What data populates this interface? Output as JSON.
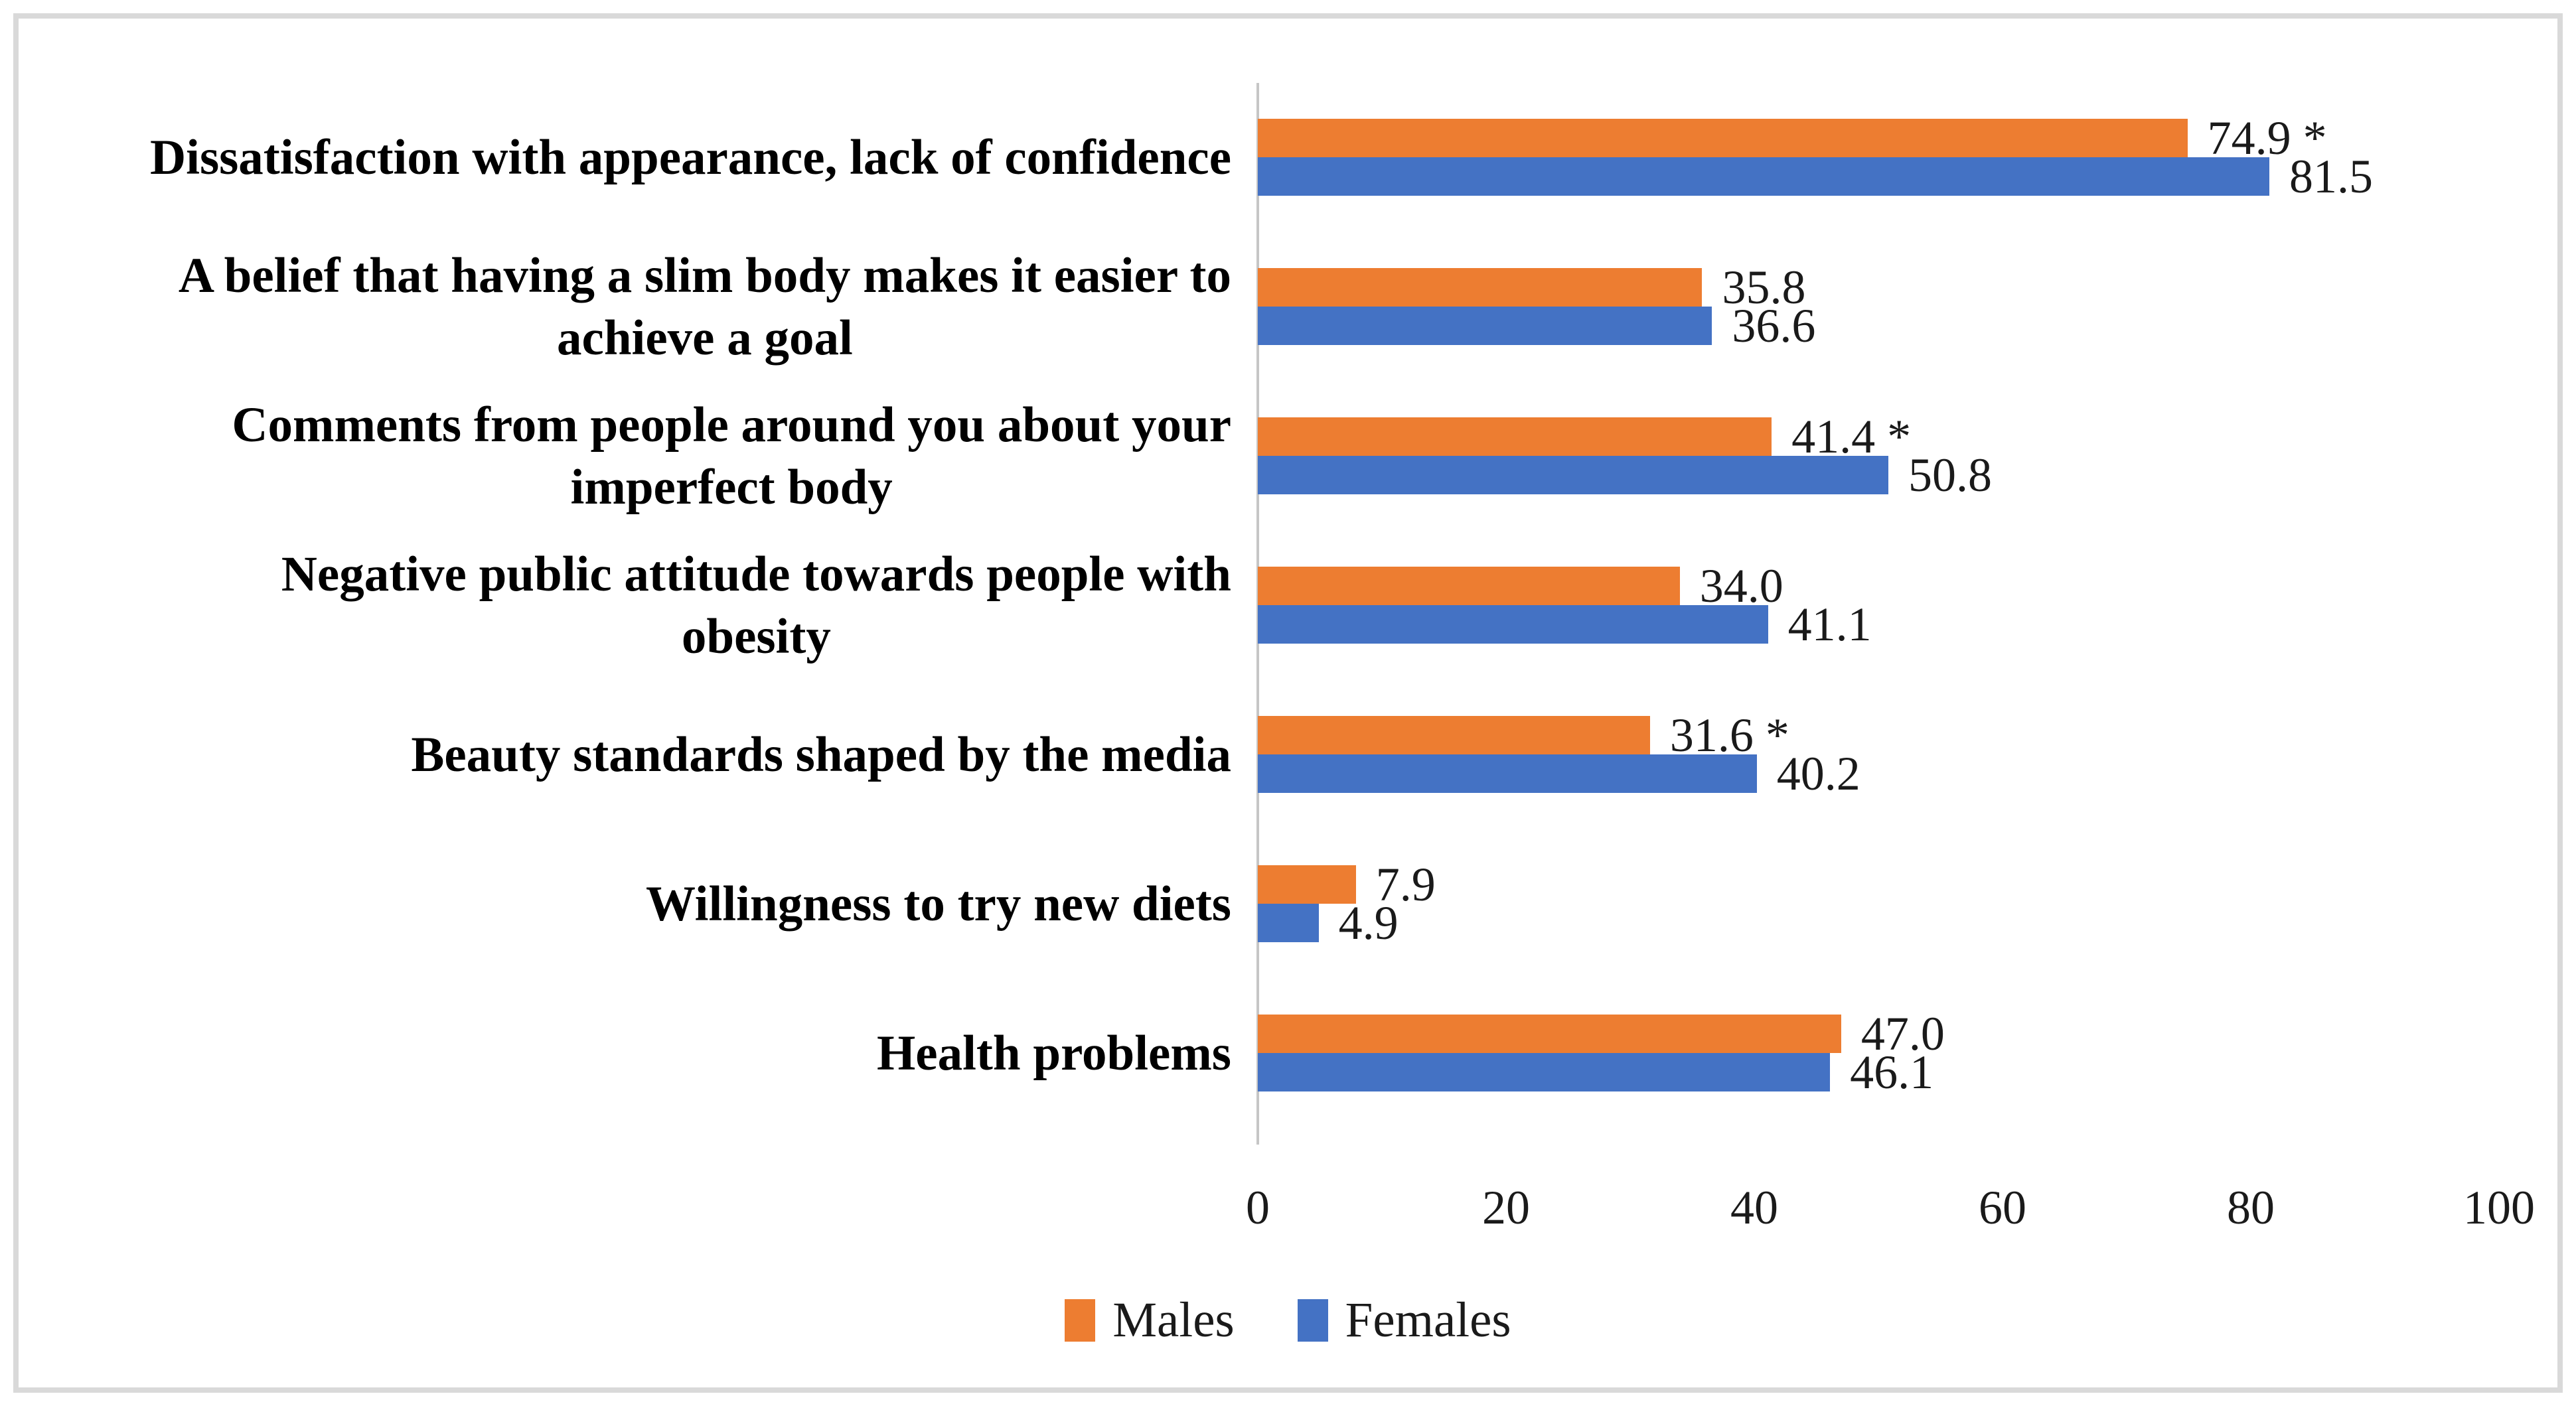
{
  "figure": {
    "background": "#ffffff",
    "border_color": "#d9d9d9",
    "axis_line_color": "#c6c6c6"
  },
  "chart_data": {
    "type": "bar",
    "orientation": "horizontal",
    "title": "",
    "xlabel": "",
    "ylabel": "",
    "categories": [
      "Dissatisfaction with appearance, lack of confidence",
      "A belief that having a slim body makes it easier to\nachieve a goal",
      "Comments from people around you about your\nimperfect body",
      "Negative public attitude towards people with\nobesity",
      "Beauty standards shaped by the media",
      "Willingness to try new diets",
      "Health problems"
    ],
    "series": [
      {
        "name": "Males",
        "color": "#ED7D31",
        "values": [
          74.9,
          35.8,
          41.4,
          34.0,
          31.6,
          7.9,
          47.0
        ],
        "labels": [
          "74.9 *",
          "35.8",
          "41.4 *",
          "34.0",
          "31.6 *",
          "7.9",
          "47.0"
        ]
      },
      {
        "name": "Females",
        "color": "#4472C4",
        "values": [
          81.5,
          36.6,
          50.8,
          41.1,
          40.2,
          4.9,
          46.1
        ],
        "labels": [
          "81.5",
          "36.6",
          "50.8",
          "41.1",
          "40.2",
          "4.9",
          "46.1"
        ]
      }
    ],
    "xlim": [
      0,
      100
    ],
    "xticks": [
      "0",
      "20",
      "40",
      "60",
      "80",
      "100"
    ],
    "gridlines": "none",
    "legend_position": "bottom"
  }
}
